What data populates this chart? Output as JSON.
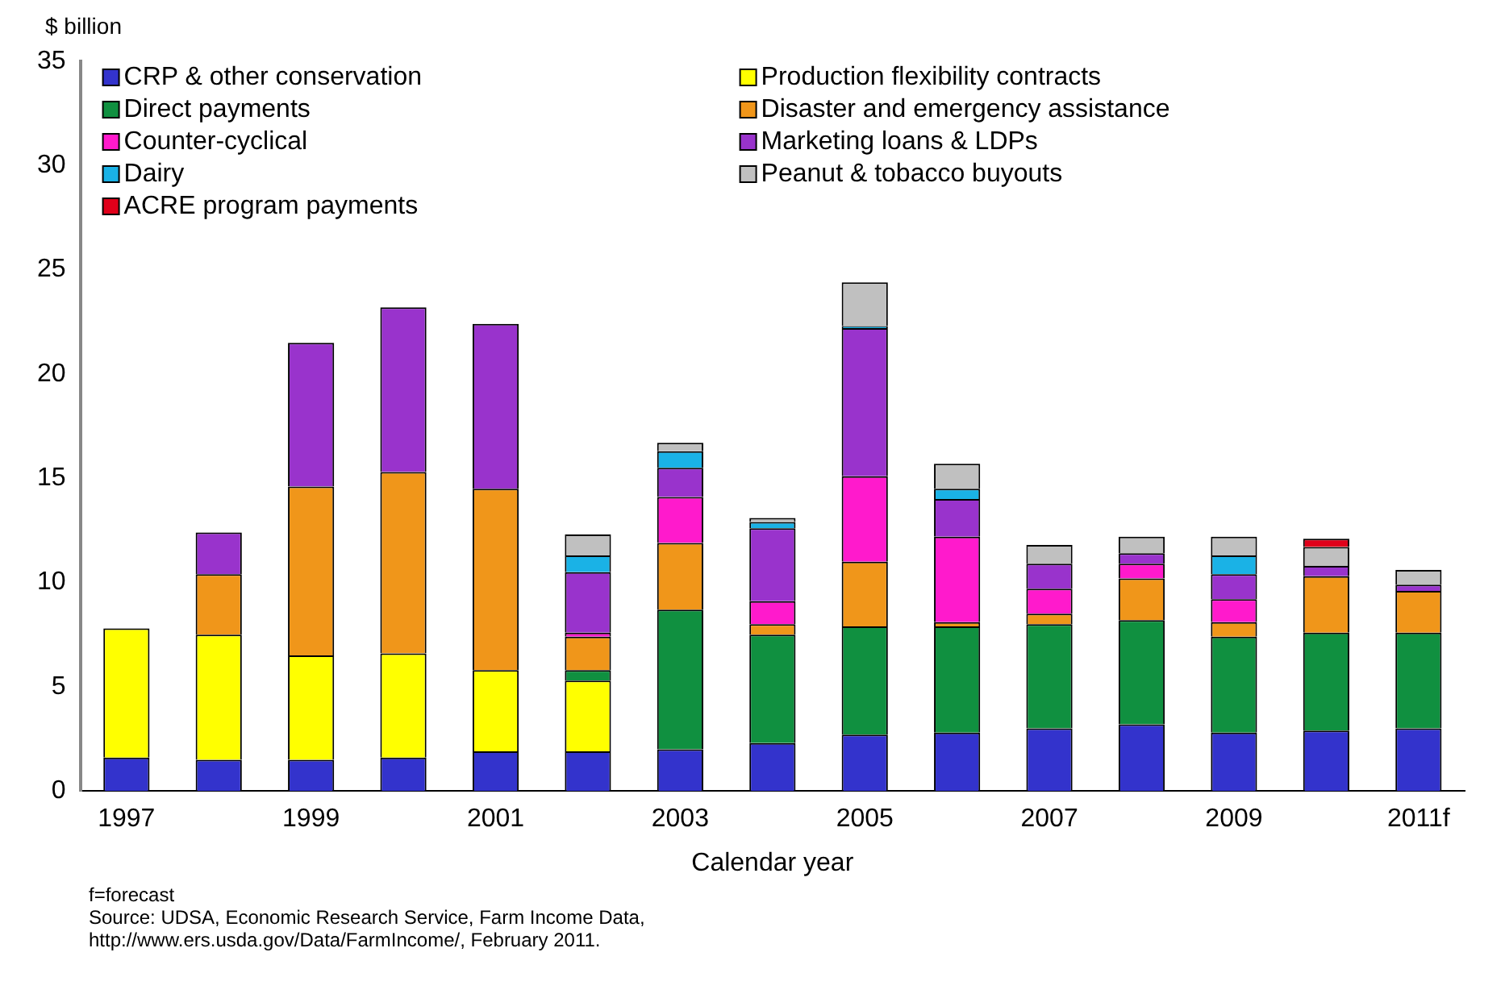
{
  "chart_data": {
    "type": "bar",
    "stacked": true,
    "ylabel": "$ billion",
    "xlabel": "Calendar year",
    "categories": [
      "1997",
      null,
      "1999",
      null,
      "2001",
      null,
      "2003",
      null,
      "2005",
      null,
      "2007",
      null,
      "2009",
      null,
      "2011f"
    ],
    "series": [
      {
        "name": "CRP & other conservation",
        "color": "#3333cc",
        "values": [
          1.6,
          1.5,
          1.5,
          1.6,
          1.9,
          1.9,
          2.0,
          2.3,
          2.7,
          2.8,
          3.0,
          3.2,
          2.8,
          2.9,
          3.0
        ]
      },
      {
        "name": "Production flexibility contracts",
        "color": "#ffff00",
        "values": [
          6.2,
          6.0,
          5.0,
          5.0,
          3.9,
          3.4,
          null,
          null,
          null,
          null,
          null,
          null,
          null,
          null,
          null
        ]
      },
      {
        "name": "Direct payments",
        "color": "#109040",
        "values": [
          null,
          null,
          null,
          null,
          null,
          0.5,
          6.7,
          5.2,
          5.2,
          5.1,
          5.0,
          5.0,
          4.6,
          4.7,
          4.6
        ]
      },
      {
        "name": "Disaster and emergency assistance",
        "color": "#f0961a",
        "values": [
          null,
          2.9,
          8.1,
          8.7,
          8.7,
          1.6,
          3.2,
          0.5,
          3.1,
          0.2,
          0.5,
          2.0,
          0.7,
          2.7,
          2.0
        ]
      },
      {
        "name": "Counter-cyclical",
        "color": "#ff1acc",
        "values": [
          null,
          null,
          null,
          null,
          null,
          0.2,
          2.2,
          1.1,
          4.1,
          4.1,
          1.2,
          0.7,
          1.1,
          null,
          null
        ]
      },
      {
        "name": "Marketing loans & LDPs",
        "color": "#9933cc",
        "values": [
          null,
          2.0,
          6.9,
          7.9,
          7.9,
          2.9,
          1.4,
          3.5,
          7.1,
          1.8,
          1.2,
          0.5,
          1.2,
          0.5,
          0.3
        ]
      },
      {
        "name": "Dairy",
        "color": "#1ab2e6",
        "values": [
          null,
          null,
          null,
          null,
          null,
          0.8,
          0.8,
          0.3,
          0.1,
          0.5,
          null,
          null,
          0.9,
          null,
          null
        ]
      },
      {
        "name": "Peanut & tobacco buyouts",
        "color": "#c0c0c0",
        "values": [
          null,
          null,
          null,
          null,
          null,
          1.0,
          0.4,
          0.2,
          2.1,
          1.2,
          0.9,
          0.8,
          0.9,
          0.9,
          0.7
        ]
      },
      {
        "name": "ACRE program payments",
        "color": "#e0001a",
        "values": [
          null,
          null,
          null,
          null,
          null,
          null,
          null,
          null,
          null,
          null,
          null,
          null,
          null,
          0.4,
          null
        ]
      }
    ],
    "ylim": [
      0,
      35
    ],
    "yticks": [
      0,
      5,
      10,
      15,
      20,
      25,
      30,
      35
    ],
    "grid": false,
    "legend": "top left",
    "annotations": [
      "f=forecast",
      "Source: UDSA, Economic Research Service, Farm Income Data,",
      "http://www.ers.usda.gov/Data/FarmIncome/, February 2011."
    ]
  }
}
